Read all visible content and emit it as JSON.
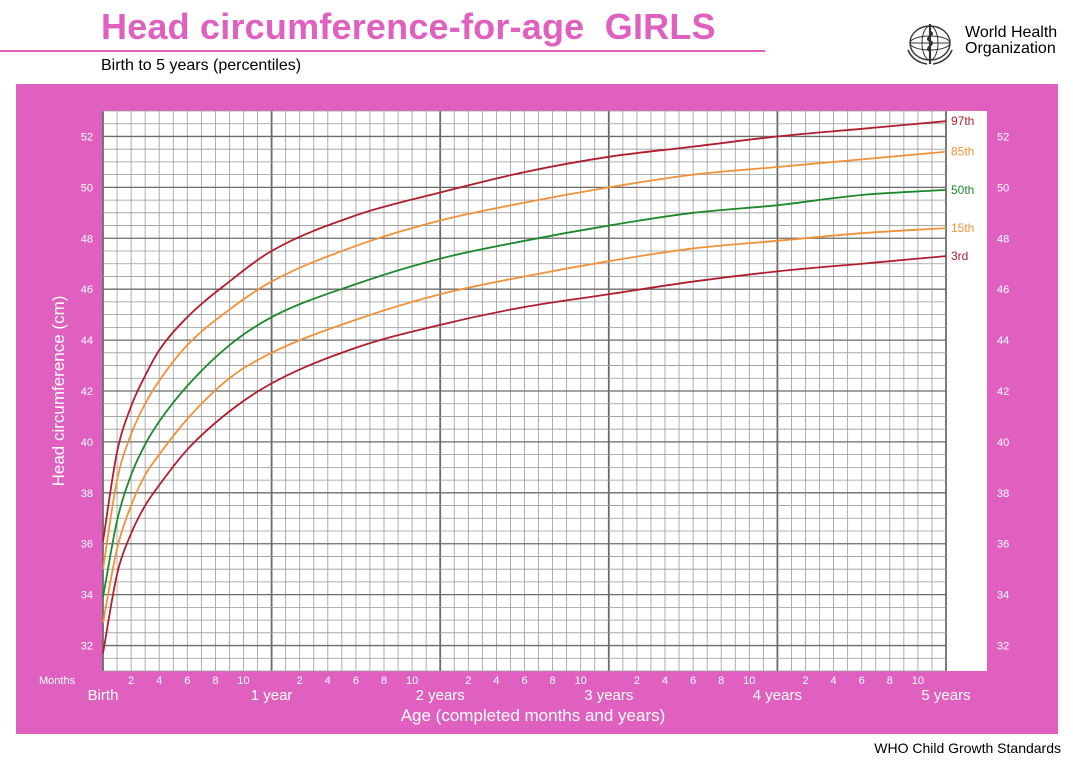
{
  "header": {
    "title": "Head circumference-for-age  GIRLS",
    "subtitle": "Birth to 5 years (percentiles)",
    "organization_line1": "World Health",
    "organization_line2": "Organization",
    "source": "WHO Child Growth Standards"
  },
  "colors": {
    "brand_pink": "#e060bf",
    "p3": "#b11e2e",
    "p15": "#f0923a",
    "p50": "#1c8a2c",
    "p85": "#f0923a",
    "p97": "#b11e2e"
  },
  "chart_data": {
    "type": "line",
    "title": "Head circumference-for-age  GIRLS",
    "subtitle": "Birth to 5 years (percentiles)",
    "xlabel": "Age (completed months and years)",
    "ylabel": "Head circumference (cm)",
    "x_unit": "months",
    "xlim": [
      0,
      60
    ],
    "ylim": [
      31,
      53
    ],
    "grid": true,
    "x_unit_label": "Months",
    "x_minor_ticks": [
      {
        "month": 2,
        "label": "2"
      },
      {
        "month": 4,
        "label": "4"
      },
      {
        "month": 6,
        "label": "6"
      },
      {
        "month": 8,
        "label": "8"
      },
      {
        "month": 10,
        "label": "10"
      },
      {
        "month": 14,
        "label": "2"
      },
      {
        "month": 16,
        "label": "4"
      },
      {
        "month": 18,
        "label": "6"
      },
      {
        "month": 20,
        "label": "8"
      },
      {
        "month": 22,
        "label": "10"
      },
      {
        "month": 26,
        "label": "2"
      },
      {
        "month": 28,
        "label": "4"
      },
      {
        "month": 30,
        "label": "6"
      },
      {
        "month": 32,
        "label": "8"
      },
      {
        "month": 34,
        "label": "10"
      },
      {
        "month": 38,
        "label": "2"
      },
      {
        "month": 40,
        "label": "4"
      },
      {
        "month": 42,
        "label": "6"
      },
      {
        "month": 44,
        "label": "8"
      },
      {
        "month": 46,
        "label": "10"
      },
      {
        "month": 50,
        "label": "2"
      },
      {
        "month": 52,
        "label": "4"
      },
      {
        "month": 54,
        "label": "6"
      },
      {
        "month": 56,
        "label": "8"
      },
      {
        "month": 58,
        "label": "10"
      }
    ],
    "x_major_ticks": [
      {
        "month": 0,
        "label": "Birth"
      },
      {
        "month": 12,
        "label": "1 year"
      },
      {
        "month": 24,
        "label": "2 years"
      },
      {
        "month": 36,
        "label": "3 years"
      },
      {
        "month": 48,
        "label": "4 years"
      },
      {
        "month": 60,
        "label": "5 years"
      }
    ],
    "y_ticks": [
      32,
      34,
      36,
      38,
      40,
      42,
      44,
      46,
      48,
      50,
      52
    ],
    "x": [
      0,
      1,
      2,
      3,
      4,
      6,
      9,
      12,
      18,
      24,
      30,
      36,
      42,
      48,
      54,
      60
    ],
    "series": [
      {
        "name": "97th",
        "color": "#b11e2e",
        "values": [
          36.1,
          39.6,
          41.4,
          42.6,
          43.6,
          44.9,
          46.3,
          47.5,
          48.9,
          49.8,
          50.6,
          51.2,
          51.6,
          52.0,
          52.3,
          52.6
        ]
      },
      {
        "name": "85th",
        "color": "#f0923a",
        "values": [
          35.0,
          38.5,
          40.3,
          41.5,
          42.4,
          43.8,
          45.2,
          46.3,
          47.7,
          48.7,
          49.4,
          50.0,
          50.5,
          50.8,
          51.1,
          51.4
        ]
      },
      {
        "name": "50th",
        "color": "#1c8a2c",
        "values": [
          33.9,
          36.9,
          38.7,
          39.9,
          40.8,
          42.2,
          43.8,
          44.9,
          46.2,
          47.2,
          47.9,
          48.5,
          49.0,
          49.3,
          49.7,
          49.9
        ]
      },
      {
        "name": "15th",
        "color": "#f0923a",
        "values": [
          32.9,
          35.8,
          37.5,
          38.7,
          39.5,
          40.9,
          42.5,
          43.5,
          44.8,
          45.8,
          46.5,
          47.1,
          47.6,
          47.9,
          48.2,
          48.4
        ]
      },
      {
        "name": "3rd",
        "color": "#b11e2e",
        "values": [
          31.7,
          34.8,
          36.4,
          37.5,
          38.3,
          39.7,
          41.2,
          42.3,
          43.7,
          44.6,
          45.3,
          45.8,
          46.3,
          46.7,
          47.0,
          47.3
        ]
      }
    ]
  }
}
